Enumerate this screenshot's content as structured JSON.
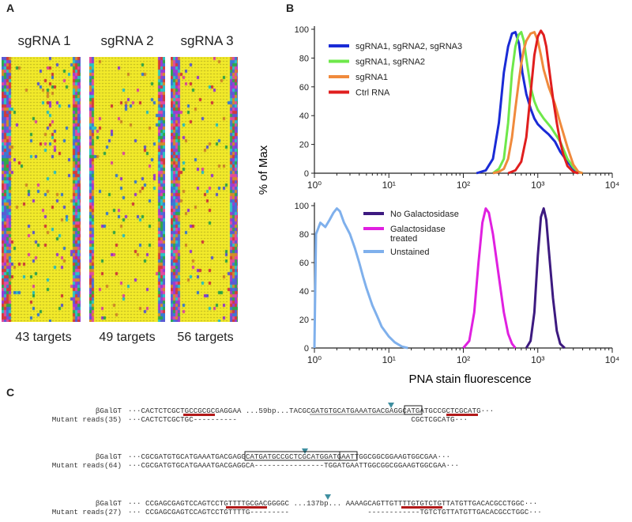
{
  "panel_a": {
    "label": "A",
    "columns": [
      {
        "title": "sgRNA 1",
        "targets": "43 targets"
      },
      {
        "title": "sgRNA 2",
        "targets": "49 targets"
      },
      {
        "title": "sgRNA 3",
        "targets": "56 targets"
      }
    ]
  },
  "panel_b": {
    "label": "B",
    "ylabel": "% of Max",
    "xlabel": "PNA stain fluorescence",
    "colors": {
      "blue": "#1a2bd6",
      "green": "#6ee84a",
      "orange": "#f08a3c",
      "red": "#e01e1e",
      "purple": "#3d1a80",
      "magenta": "#e020e0",
      "lightblue": "#7fb0ec"
    }
  },
  "chart_data": [
    {
      "type": "line",
      "title": "",
      "xlabel": "",
      "ylabel": "% of Max",
      "xscale": "log",
      "xlim": [
        1,
        10000
      ],
      "ylim": [
        0,
        100
      ],
      "xticks": [
        "10⁰",
        "10¹",
        "10²",
        "10³",
        "10⁴"
      ],
      "yticks": [
        "0",
        "20",
        "40",
        "60",
        "80",
        "100"
      ],
      "legend_position": "top-left",
      "series": [
        {
          "name": "sgRNA1, sgRNA2, sgRNA3",
          "color": "#1a2bd6",
          "x": [
            150,
            200,
            250,
            300,
            350,
            400,
            450,
            500,
            560,
            620,
            700,
            800,
            900,
            1000,
            1200,
            1400,
            1700,
            2000,
            2500,
            3000,
            3500
          ],
          "y": [
            0,
            2,
            10,
            35,
            70,
            88,
            97,
            98,
            90,
            70,
            55,
            45,
            38,
            34,
            30,
            27,
            22,
            15,
            8,
            3,
            0
          ]
        },
        {
          "name": "sgRNA1, sgRNA2",
          "color": "#6ee84a",
          "x": [
            250,
            300,
            350,
            400,
            450,
            500,
            550,
            600,
            650,
            700,
            800,
            900,
            1000,
            1200,
            1500,
            2000,
            2500,
            3000,
            3500,
            4000
          ],
          "y": [
            0,
            3,
            10,
            35,
            70,
            88,
            96,
            98,
            92,
            80,
            60,
            50,
            44,
            38,
            32,
            22,
            10,
            4,
            1,
            0
          ]
        },
        {
          "name": "sgRNA1",
          "color": "#f08a3c",
          "x": [
            250,
            300,
            350,
            400,
            450,
            500,
            550,
            600,
            650,
            700,
            800,
            900,
            1000,
            1100,
            1200,
            1400,
            1700,
            2000,
            2500,
            3000,
            3500,
            4000
          ],
          "y": [
            0,
            1,
            3,
            10,
            25,
            45,
            62,
            76,
            86,
            92,
            97,
            98,
            92,
            82,
            72,
            60,
            48,
            35,
            18,
            6,
            1,
            0
          ]
        },
        {
          "name": "Ctrl RNA",
          "color": "#e01e1e",
          "x": [
            400,
            500,
            600,
            700,
            800,
            900,
            1000,
            1100,
            1200,
            1300,
            1400,
            1600,
            1800,
            2000,
            2200,
            2500,
            3000,
            3500
          ],
          "y": [
            0,
            2,
            8,
            25,
            55,
            82,
            95,
            99,
            96,
            88,
            75,
            52,
            35,
            22,
            13,
            5,
            1,
            0
          ]
        }
      ]
    },
    {
      "type": "line",
      "title": "",
      "xlabel": "PNA stain fluorescence",
      "ylabel": "% of Max",
      "xscale": "log",
      "xlim": [
        1,
        10000
      ],
      "ylim": [
        0,
        100
      ],
      "xticks": [
        "10⁰",
        "10¹",
        "10²",
        "10³",
        "10⁴"
      ],
      "yticks": [
        "0",
        "20",
        "40",
        "60",
        "80",
        "100"
      ],
      "legend_position": "top-center",
      "series": [
        {
          "name": "No Galactosidase",
          "color": "#3d1a80",
          "x": [
            700,
            800,
            900,
            1000,
            1100,
            1200,
            1300,
            1400,
            1600,
            1800,
            2000,
            2300
          ],
          "y": [
            0,
            5,
            25,
            65,
            92,
            98,
            90,
            70,
            35,
            12,
            3,
            0
          ]
        },
        {
          "name": "Galactosidase treated",
          "color": "#e020e0",
          "x": [
            100,
            120,
            140,
            160,
            180,
            200,
            220,
            250,
            300,
            350,
            400,
            450,
            500
          ],
          "y": [
            0,
            5,
            25,
            60,
            88,
            98,
            95,
            80,
            50,
            25,
            10,
            3,
            0
          ]
        },
        {
          "name": "Unstained",
          "color": "#7fb0ec",
          "x": [
            1.0,
            1.05,
            1.2,
            1.4,
            1.6,
            1.8,
            2.0,
            2.2,
            2.5,
            3.0,
            3.5,
            4.0,
            4.5,
            5.0,
            6.0,
            7.0,
            8.0,
            10,
            12,
            15,
            18
          ],
          "y": [
            0,
            80,
            88,
            85,
            90,
            95,
            98,
            96,
            88,
            80,
            70,
            60,
            50,
            42,
            30,
            22,
            15,
            8,
            4,
            1,
            0
          ]
        }
      ]
    }
  ],
  "panel_c": {
    "label": "C",
    "blocks": [
      {
        "ref_label": "βGalGT",
        "mut_label": "Mutant reads(35)",
        "ref_seq": "···CACTCTCGCTGCCGCGCGAGGAA ...59bp...TACGCGATGTGCATGAAATGACGAGGCATGATGCCGCTCGCATG···",
        "mut_seq": "···CACTCTCGCTGC----------                                        CGCTCGCATG···"
      },
      {
        "ref_label": "βGalGT",
        "mut_label": "Mutant reads(64)",
        "ref_seq": "···CGCGATGTGCATGAAATGACGAGGCATGATGCCGCTCGCATGGATGAATTGGCGGCGGAAGTGGCGAA···",
        "mut_seq": "···CGCGATGTGCATGAAATGACGAGGCA----------------TGGATGAATTGGCGGCGGAAGTGGCGAA···"
      },
      {
        "ref_label": "βGalGT",
        "mut_label": "Mutant reads(27)",
        "ref_seq": "··· CCGAGCGAGTCCAGTCCTGTTTTGCGACGGGGC ...137bp... AAAAGCAGTTGTTTTGTGTCTGTTATGTTGACACGCCTGGC···",
        "mut_seq": "··· CCGAGCGAGTCCAGTCCTGTTTTG---------                  ------------TGTCTGTTATGTTGACACGCCTGGC···"
      }
    ]
  }
}
